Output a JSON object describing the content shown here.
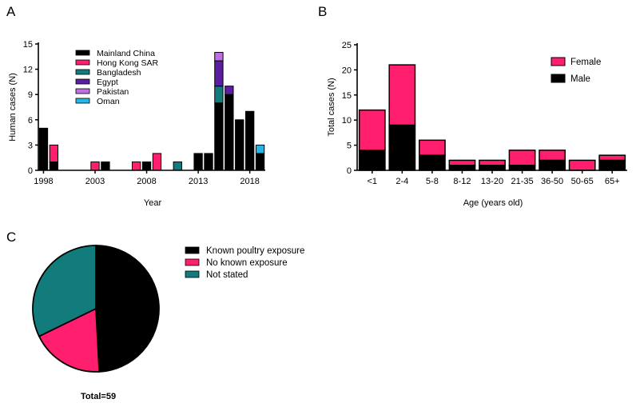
{
  "chart_data": [
    {
      "panel": "A",
      "type": "bar",
      "stacked": true,
      "title": "",
      "xlabel": "Year",
      "ylabel": "Human cases (N)",
      "ylim": [
        0,
        15
      ],
      "yticks": [
        0,
        3,
        6,
        9,
        12,
        15
      ],
      "xlim": [
        1997.5,
        2019.5
      ],
      "xticks": [
        1998,
        2003,
        2008,
        2013,
        2018
      ],
      "x": [
        1998,
        1999,
        2003,
        2004,
        2007,
        2008,
        2009,
        2011,
        2013,
        2014,
        2015,
        2016,
        2017,
        2018,
        2019
      ],
      "series": [
        {
          "name": "Mainland China",
          "color": "#000000",
          "values": [
            5,
            1,
            0,
            1,
            0,
            1,
            0,
            0,
            2,
            2,
            8,
            9,
            6,
            7,
            2
          ]
        },
        {
          "name": "Hong Kong SAR",
          "color": "#ff1f6e",
          "values": [
            0,
            2,
            1,
            0,
            1,
            0,
            2,
            0,
            0,
            0,
            0,
            0,
            0,
            0,
            0
          ]
        },
        {
          "name": "Bangladesh",
          "color": "#127b7b",
          "values": [
            0,
            0,
            0,
            0,
            0,
            0,
            0,
            1,
            0,
            0,
            2,
            0,
            0,
            0,
            0
          ]
        },
        {
          "name": "Egypt",
          "color": "#5b1ea0",
          "values": [
            0,
            0,
            0,
            0,
            0,
            0,
            0,
            0,
            0,
            0,
            3,
            1,
            0,
            0,
            0
          ]
        },
        {
          "name": "Pakistan",
          "color": "#c06fe0",
          "values": [
            0,
            0,
            0,
            0,
            0,
            0,
            0,
            0,
            0,
            0,
            1,
            0,
            0,
            0,
            0
          ]
        },
        {
          "name": "Oman",
          "color": "#25b6e6",
          "values": [
            0,
            0,
            0,
            0,
            0,
            0,
            0,
            0,
            0,
            0,
            0,
            0,
            0,
            0,
            1
          ]
        }
      ],
      "legend_position": "top-left"
    },
    {
      "panel": "B",
      "type": "bar",
      "stacked": true,
      "title": "",
      "xlabel": "Age (years old)",
      "ylabel": "Total cases (N)",
      "ylim": [
        0,
        25
      ],
      "yticks": [
        0,
        5,
        10,
        15,
        20,
        25
      ],
      "categories": [
        "<1",
        "2-4",
        "5-8",
        "8-12",
        "13-20",
        "21-35",
        "36-50",
        "50-65",
        "65+"
      ],
      "series": [
        {
          "name": "Male",
          "color": "#000000",
          "values": [
            4,
            9,
            3,
            1,
            1,
            1,
            2,
            0,
            2
          ]
        },
        {
          "name": "Female",
          "color": "#ff1f6e",
          "values": [
            8,
            12,
            3,
            1,
            1,
            3,
            2,
            2,
            1
          ]
        }
      ],
      "legend_order": [
        "Female",
        "Male"
      ],
      "legend_position": "top-right"
    },
    {
      "panel": "C",
      "type": "pie",
      "title": "",
      "total": 59,
      "total_label": "Total=59",
      "slices": [
        {
          "name": "Known poultry exposure",
          "value": 29,
          "color": "#000000"
        },
        {
          "name": "No known exposure",
          "value": 11,
          "color": "#ff1f6e"
        },
        {
          "name": "Not stated",
          "value": 19,
          "color": "#127b7b"
        }
      ],
      "legend_position": "right"
    }
  ],
  "panel_labels": {
    "a": "A",
    "b": "B",
    "c": "C"
  }
}
